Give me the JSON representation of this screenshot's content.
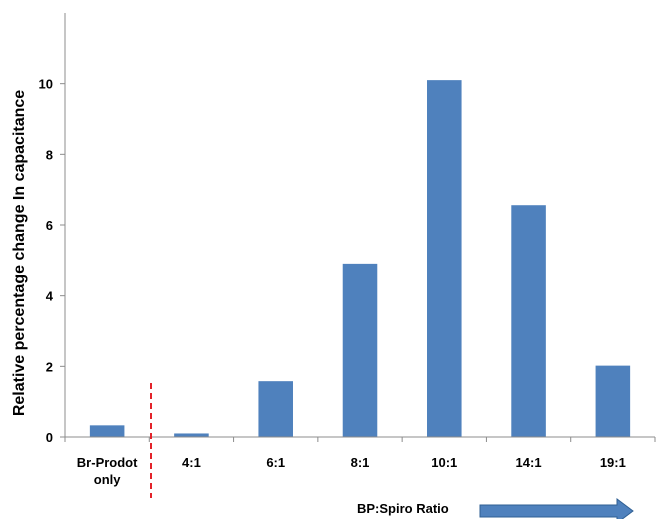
{
  "chart_data": {
    "type": "bar",
    "categories": [
      [
        "Br-Prodot",
        "only"
      ],
      [
        "4:1"
      ],
      [
        "6:1"
      ],
      [
        "8:1"
      ],
      [
        "10:1"
      ],
      [
        "14:1"
      ],
      [
        "19:1"
      ]
    ],
    "values": [
      0.33,
      0.1,
      1.58,
      4.9,
      10.1,
      6.56,
      2.02
    ],
    "ylabel": "Relative percentage change  In capacitance",
    "xlabel": "BP:Spiro Ratio",
    "ylim": [
      0,
      12
    ],
    "yticks": [
      0,
      2,
      4,
      6,
      8,
      10
    ],
    "bar_color": "#4f81bd",
    "divider_color": "#e3222a",
    "arrow_color": "#4f81bd",
    "grid": false
  }
}
